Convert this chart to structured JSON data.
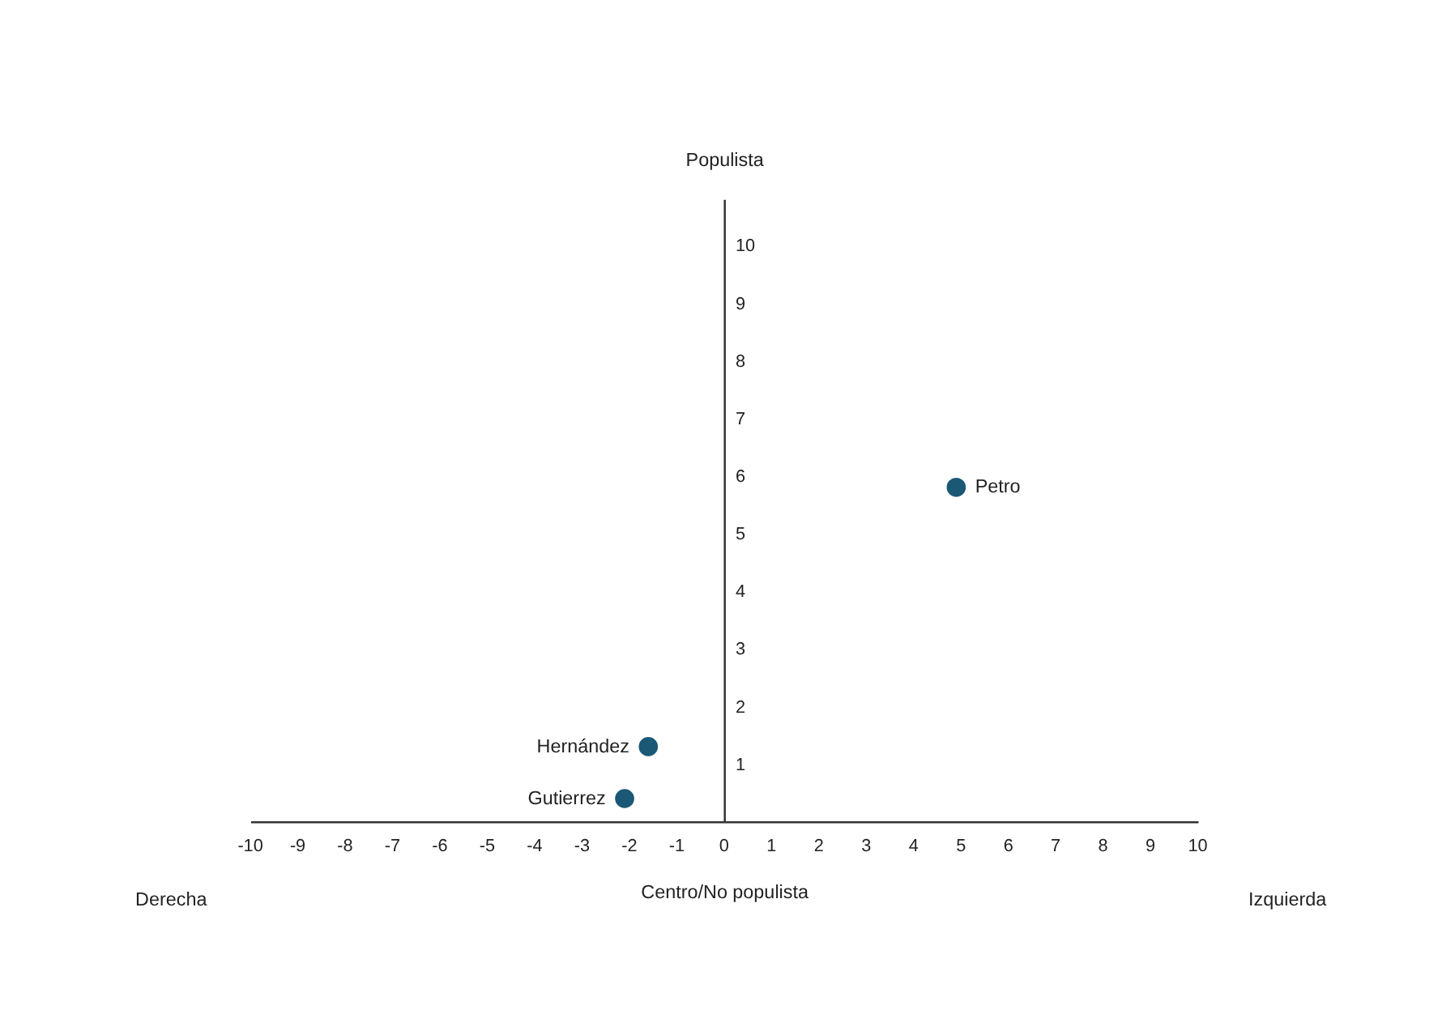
{
  "chart_data": {
    "type": "scatter",
    "xlabel": "Centro/No populista",
    "ylabel": "Populista",
    "annotations": [
      "Derecha",
      "Izquierda"
    ],
    "series": [
      {
        "name": "Petro",
        "color": "#1b5876",
        "x": [
          4.9
        ],
        "values": [
          5.8
        ]
      },
      {
        "name": "Hernández",
        "color": "#1b5876",
        "x": [
          -1.6
        ],
        "values": [
          1.3
        ]
      },
      {
        "name": "Gutierrez",
        "color": "#1b5876",
        "x": [
          -2.1
        ],
        "values": [
          0.4
        ]
      }
    ],
    "xlim": [
      -10,
      10
    ],
    "ylim": [
      0,
      10.8
    ],
    "xticks": [
      -10,
      -9,
      -8,
      -7,
      -6,
      -5,
      -4,
      -3,
      -2,
      -1,
      0,
      1,
      2,
      3,
      4,
      5,
      6,
      7,
      8,
      9,
      10
    ],
    "yticks": [
      1,
      2,
      3,
      4,
      5,
      6,
      7,
      8,
      9,
      10
    ],
    "grid": false,
    "legend": false,
    "marker": "circle"
  }
}
